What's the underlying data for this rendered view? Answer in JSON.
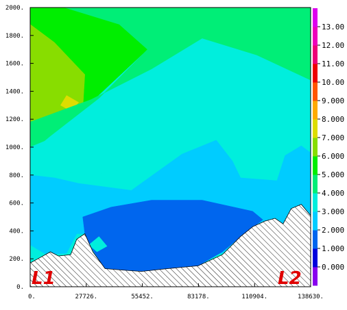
{
  "chart_data": {
    "type": "heatmap",
    "title": "",
    "xlabel": "",
    "ylabel": "",
    "xlim": [
      0,
      138630
    ],
    "ylim": [
      0,
      2000
    ],
    "x_ticks": [
      "0.",
      "27726.",
      "55452.",
      "83178.",
      "110904.",
      "138630."
    ],
    "x_tick_values": [
      0,
      27726,
      55452,
      83178,
      110904,
      138630
    ],
    "y_ticks": [
      "0.",
      "200.",
      "400.",
      "600.",
      "800.",
      "1000.",
      "1200.",
      "1400.",
      "1600.",
      "1800.",
      "2000."
    ],
    "y_tick_values": [
      0,
      200,
      400,
      600,
      800,
      1000,
      1200,
      1400,
      1600,
      1800,
      2000
    ],
    "colorbar": {
      "labels": [
        "0.000",
        "1.000",
        "2.000",
        "3.000",
        "4.000",
        "5.000",
        "6.000",
        "7.000",
        "8.000",
        "9.000",
        "10.00",
        "11.00",
        "12.00",
        "13.00"
      ],
      "values": [
        0,
        1,
        2,
        3,
        4,
        5,
        6,
        7,
        8,
        9,
        10,
        11,
        12,
        13
      ],
      "colors": [
        "#8800ee",
        "#0000dd",
        "#0066ee",
        "#00ccff",
        "#00eedd",
        "#00ee77",
        "#00ee00",
        "#88dd00",
        "#dddd00",
        "#ffaa00",
        "#ff5500",
        "#ee0000",
        "#ee0077",
        "#ee00bb",
        "#dd00ee"
      ]
    },
    "terrain": [
      {
        "x": 0,
        "y": 170
      },
      {
        "x": 5000,
        "y": 210
      },
      {
        "x": 10000,
        "y": 250
      },
      {
        "x": 14000,
        "y": 220
      },
      {
        "x": 20000,
        "y": 230
      },
      {
        "x": 23000,
        "y": 340
      },
      {
        "x": 27000,
        "y": 380
      },
      {
        "x": 31000,
        "y": 250
      },
      {
        "x": 37000,
        "y": 130
      },
      {
        "x": 45000,
        "y": 120
      },
      {
        "x": 55000,
        "y": 110
      },
      {
        "x": 68000,
        "y": 130
      },
      {
        "x": 83000,
        "y": 150
      },
      {
        "x": 95000,
        "y": 230
      },
      {
        "x": 104000,
        "y": 360
      },
      {
        "x": 110000,
        "y": 430
      },
      {
        "x": 116000,
        "y": 470
      },
      {
        "x": 121000,
        "y": 490
      },
      {
        "x": 125000,
        "y": 450
      },
      {
        "x": 129000,
        "y": 560
      },
      {
        "x": 134000,
        "y": 590
      },
      {
        "x": 138630,
        "y": 510
      }
    ],
    "regions": [
      {
        "level": 5,
        "points": [
          [
            0,
            1000
          ],
          [
            0,
            2000
          ],
          [
            17000,
            2000
          ],
          [
            44000,
            1880
          ],
          [
            58000,
            1700
          ],
          [
            30000,
            1320
          ],
          [
            0,
            1180
          ]
        ]
      },
      {
        "level": 6,
        "points": [
          [
            0,
            1180
          ],
          [
            0,
            1880
          ],
          [
            12000,
            1750
          ],
          [
            27000,
            1520
          ],
          [
            26000,
            1270
          ],
          [
            10000,
            1180
          ]
        ]
      },
      {
        "level": 7,
        "points": [
          [
            15000,
            1300
          ],
          [
            18000,
            1370
          ],
          [
            24000,
            1320
          ],
          [
            20000,
            1260
          ]
        ]
      },
      {
        "level": 4,
        "points": [
          [
            0,
            960
          ],
          [
            0,
            1180
          ],
          [
            30000,
            1340
          ],
          [
            60000,
            1560
          ],
          [
            85000,
            1780
          ],
          [
            112000,
            1660
          ],
          [
            138630,
            1480
          ],
          [
            138630,
            2000
          ],
          [
            17000,
            2000
          ],
          [
            44000,
            1880
          ],
          [
            58000,
            1700
          ],
          [
            34000,
            1350
          ],
          [
            10000,
            1080
          ]
        ]
      },
      {
        "level": 4,
        "points": [
          [
            115000,
            980
          ],
          [
            118000,
            1170
          ],
          [
            121000,
            1010
          ]
        ]
      },
      {
        "level": 3,
        "points": [
          [
            0,
            800
          ],
          [
            0,
            1000
          ],
          [
            10000,
            1060
          ],
          [
            20000,
            1110
          ],
          [
            45000,
            1240
          ],
          [
            60000,
            1400
          ],
          [
            85000,
            1620
          ],
          [
            110000,
            1550
          ],
          [
            138630,
            1400
          ],
          [
            138630,
            1060
          ],
          [
            128000,
            960
          ],
          [
            123000,
            780
          ],
          [
            105000,
            760
          ],
          [
            95000,
            980
          ],
          [
            74000,
            940
          ],
          [
            55000,
            860
          ],
          [
            30000,
            800
          ],
          [
            12000,
            830
          ]
        ]
      },
      {
        "level": 2,
        "points": [
          [
            0,
            300
          ],
          [
            0,
            800
          ],
          [
            12000,
            780
          ],
          [
            24000,
            740
          ],
          [
            50000,
            690
          ],
          [
            75000,
            950
          ],
          [
            92000,
            1050
          ],
          [
            100000,
            900
          ],
          [
            104000,
            780
          ],
          [
            122000,
            760
          ],
          [
            126000,
            940
          ],
          [
            134000,
            1010
          ],
          [
            138630,
            960
          ],
          [
            138630,
            500
          ],
          [
            125000,
            450
          ],
          [
            110000,
            420
          ],
          [
            95000,
            240
          ],
          [
            60000,
            200
          ],
          [
            37000,
            200
          ],
          [
            27000,
            380
          ],
          [
            23000,
            380
          ],
          [
            18000,
            240
          ],
          [
            8000,
            230
          ]
        ]
      },
      {
        "level": 1,
        "points": [
          [
            26000,
            500
          ],
          [
            40000,
            570
          ],
          [
            60000,
            620
          ],
          [
            85000,
            620
          ],
          [
            110000,
            540
          ],
          [
            115000,
            480
          ],
          [
            105000,
            370
          ],
          [
            95000,
            250
          ],
          [
            83000,
            150
          ],
          [
            55000,
            110
          ],
          [
            37000,
            130
          ],
          [
            31000,
            260
          ],
          [
            27000,
            380
          ]
        ]
      },
      {
        "level": 3,
        "points": [
          [
            29000,
            300
          ],
          [
            34000,
            360
          ],
          [
            38000,
            290
          ],
          [
            33000,
            250
          ]
        ]
      }
    ]
  },
  "labels": {
    "left_end": "L1",
    "right_end": "L2"
  }
}
